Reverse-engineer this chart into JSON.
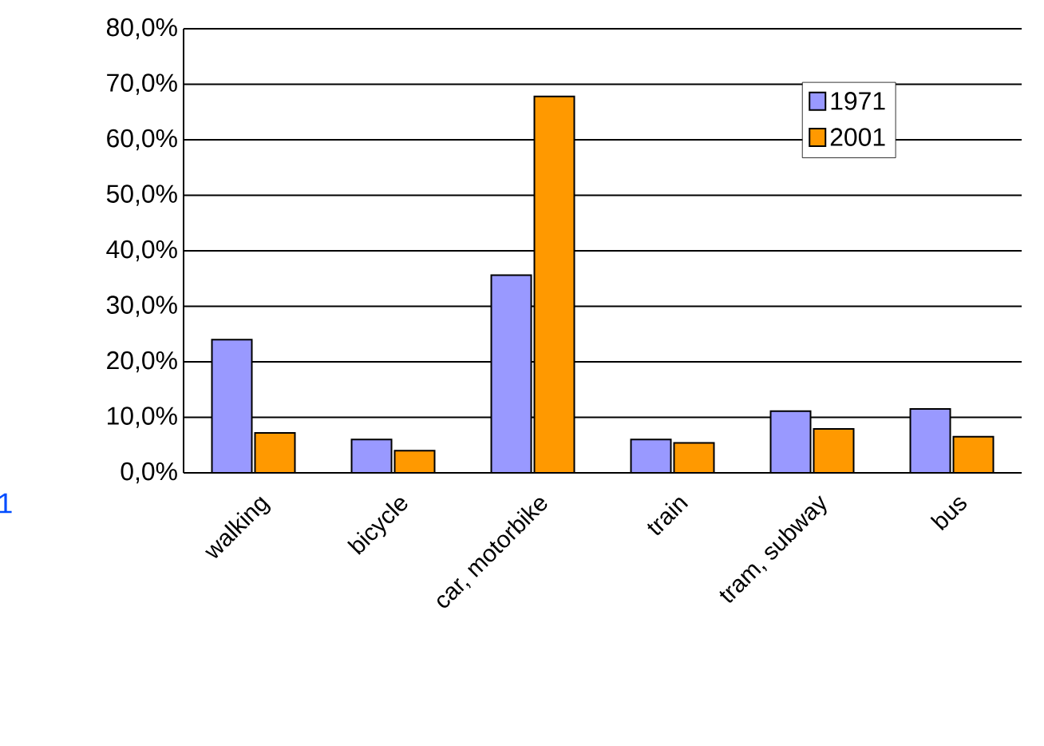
{
  "chart_data": {
    "type": "bar",
    "categories": [
      "walking",
      "bicycle",
      "car, motorbike",
      "train",
      "tram, subway",
      "bus"
    ],
    "series": [
      {
        "name": "1971",
        "color": "#9999ff",
        "values": [
          24.0,
          6.0,
          35.6,
          6.0,
          11.1,
          11.5
        ]
      },
      {
        "name": "2001",
        "color": "#ff9900",
        "values": [
          7.2,
          4.0,
          67.8,
          5.4,
          7.9,
          6.5
        ]
      }
    ],
    "ylim": [
      0,
      80
    ],
    "yticks": [
      {
        "value": 0,
        "label": "0,0%"
      },
      {
        "value": 10,
        "label": "10,0%"
      },
      {
        "value": 20,
        "label": "20,0%"
      },
      {
        "value": 30,
        "label": "30,0%"
      },
      {
        "value": 40,
        "label": "40,0%"
      },
      {
        "value": 50,
        "label": "50,0%"
      },
      {
        "value": 60,
        "label": "60,0%"
      },
      {
        "value": 70,
        "label": "70,0%"
      },
      {
        "value": 80,
        "label": "80,0%"
      }
    ],
    "grid": "y",
    "legend": "top right",
    "annotations": [
      "1"
    ]
  }
}
